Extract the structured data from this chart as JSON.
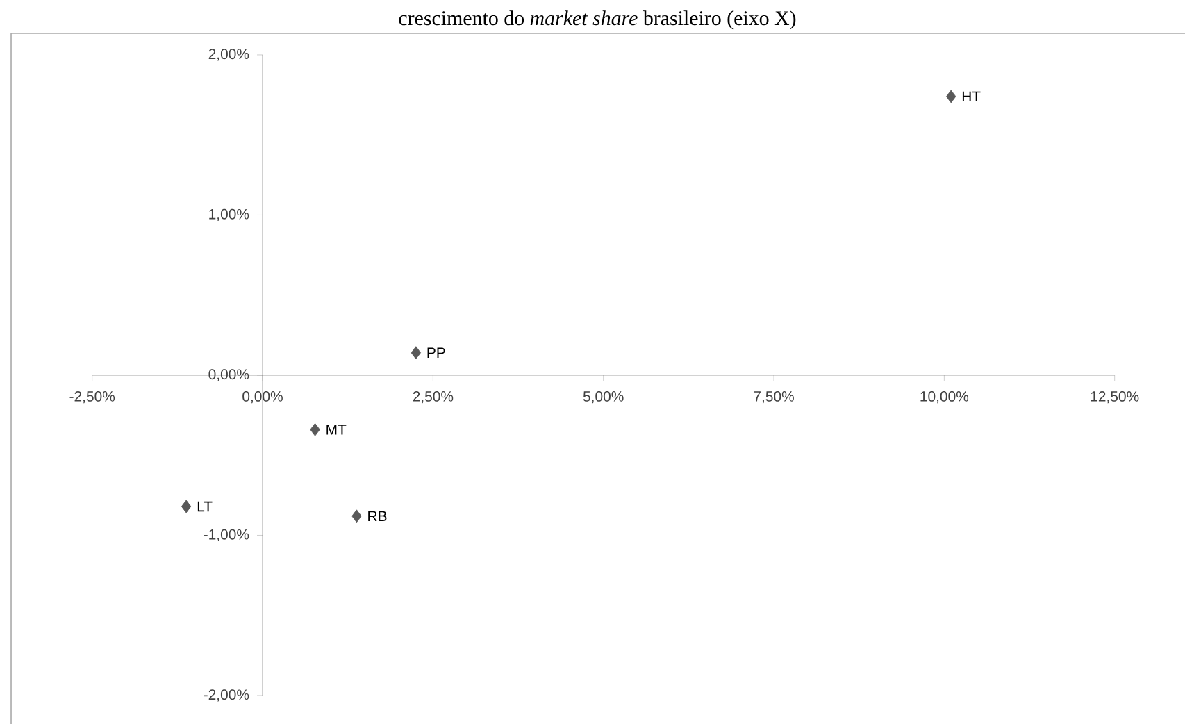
{
  "chart_data": {
    "type": "scatter",
    "title": "crescimento do *market share* brasileiro (eixo X)",
    "x": [
      10.1,
      2.25,
      0.77,
      -1.12,
      1.38
    ],
    "values": [
      1.74,
      0.14,
      -0.34,
      -0.82,
      -0.88
    ],
    "color": "#595959",
    "marker": "diamond",
    "xlim": [
      -2.5,
      12.5
    ],
    "xticks": [
      {
        "value": -2.5,
        "label": "-2,50%"
      },
      {
        "value": 0,
        "label": "0,00%"
      },
      {
        "value": 2.5,
        "label": "2,50%"
      },
      {
        "value": 5,
        "label": "5,00%"
      },
      {
        "value": 7.5,
        "label": "7,50%"
      },
      {
        "value": 10,
        "label": "10,00%"
      },
      {
        "value": 12.5,
        "label": "12,50%"
      }
    ],
    "ylim": [
      -2,
      2
    ],
    "yticks": [
      {
        "value": -2,
        "label": "-2,00%"
      },
      {
        "value": -1,
        "label": "-1,00%"
      },
      {
        "value": 0,
        "label": "0,00%"
      },
      {
        "value": 1,
        "label": "1,00%"
      },
      {
        "value": 2,
        "label": "2,00%"
      }
    ],
    "annotations": [
      {
        "text": "HT",
        "x": 10.1,
        "y": 1.74
      },
      {
        "text": "PP",
        "x": 2.25,
        "y": 0.14
      },
      {
        "text": "MT",
        "x": 0.77,
        "y": -0.34
      },
      {
        "text": "LT",
        "x": -1.12,
        "y": -0.82
      },
      {
        "text": "RB",
        "x": 1.38,
        "y": -0.88
      }
    ]
  }
}
